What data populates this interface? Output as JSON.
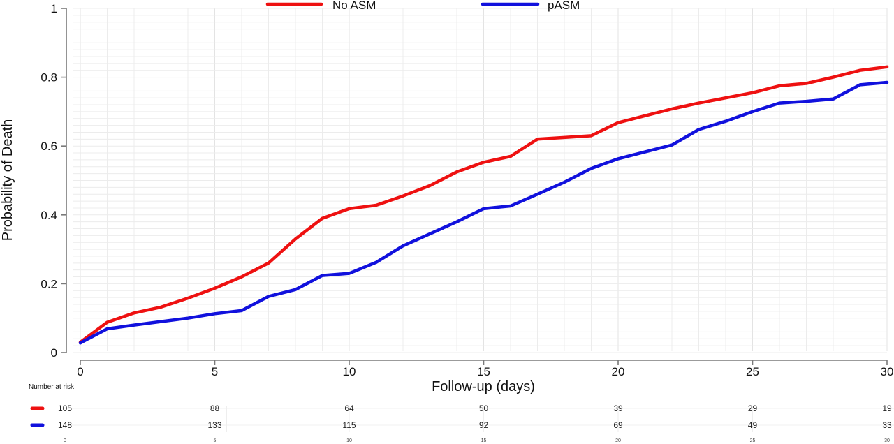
{
  "chart_data": {
    "type": "line",
    "title": "",
    "xlabel": "Follow-up (days)",
    "ylabel": "Probability of Death",
    "xlim": [
      0,
      30
    ],
    "ylim": [
      0,
      1
    ],
    "x_ticks": [
      0,
      5,
      10,
      15,
      20,
      25,
      30
    ],
    "y_ticks": [
      0,
      0.2,
      0.4,
      0.6,
      0.8,
      1
    ],
    "y_tick_labels": [
      "0",
      "0.2",
      "0.4",
      "0.6",
      "0.8",
      "1"
    ],
    "grid": true,
    "legend_position": "top",
    "x": [
      0,
      1,
      2,
      3,
      4,
      5,
      6,
      7,
      8,
      9,
      10,
      11,
      12,
      13,
      14,
      15,
      16,
      17,
      18,
      19,
      20,
      21,
      22,
      23,
      24,
      25,
      26,
      27,
      28,
      29,
      30
    ],
    "series": [
      {
        "name": "No ASM",
        "color": "#ee1111",
        "values": [
          0.03,
          0.088,
          0.115,
          0.132,
          0.158,
          0.187,
          0.22,
          0.26,
          0.33,
          0.39,
          0.418,
          0.428,
          0.455,
          0.485,
          0.525,
          0.553,
          0.57,
          0.62,
          0.625,
          0.63,
          0.668,
          0.688,
          0.708,
          0.725,
          0.74,
          0.755,
          0.775,
          0.782,
          0.8,
          0.82,
          0.83
        ]
      },
      {
        "name": "pASM",
        "color": "#1111dd",
        "values": [
          0.028,
          0.069,
          0.08,
          0.09,
          0.1,
          0.113,
          0.122,
          0.163,
          0.183,
          0.224,
          0.23,
          0.262,
          0.31,
          0.345,
          0.38,
          0.418,
          0.426,
          0.46,
          0.495,
          0.535,
          0.563,
          0.583,
          0.603,
          0.648,
          0.672,
          0.7,
          0.725,
          0.73,
          0.737,
          0.778,
          0.785
        ]
      }
    ],
    "risk_table": {
      "title": "Number at risk",
      "times": [
        0,
        5,
        10,
        15,
        20,
        25,
        30
      ],
      "rows": [
        {
          "name": "No ASM",
          "color": "#ee1111",
          "values": [
            105,
            88,
            64,
            50,
            39,
            29,
            19
          ]
        },
        {
          "name": "pASM",
          "color": "#1111dd",
          "values": [
            148,
            133,
            115,
            92,
            69,
            49,
            33
          ]
        }
      ]
    }
  }
}
